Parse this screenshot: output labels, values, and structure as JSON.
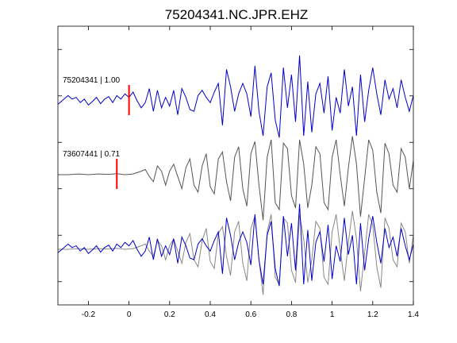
{
  "chart_data": {
    "type": "line",
    "title": "75204341.NC.JPR.EHZ",
    "xlabel": "",
    "ylabel": "",
    "xlim": [
      -0.35,
      1.4
    ],
    "xticks": [
      -0.2,
      0,
      0.2,
      0.4,
      0.6,
      0.8,
      1,
      1.2,
      1.4
    ],
    "xtick_labels": [
      "-0.2",
      "0",
      "0.2",
      "0.4",
      "0.6",
      "0.8",
      "1",
      "1.2",
      "1.4"
    ],
    "yticks_count": 6,
    "ytick_labels": [],
    "grid": false,
    "legend": "none",
    "colors": {
      "primary": "#0000cc",
      "reference": "#555555",
      "pick": "#ff0000",
      "axes": "#000000"
    },
    "traces": [
      {
        "label": "75204341 | 1.00",
        "color": "#0000cc",
        "pick_time": 0.0,
        "x": [
          -0.35,
          -0.32,
          -0.3,
          -0.28,
          -0.26,
          -0.24,
          -0.22,
          -0.2,
          -0.18,
          -0.16,
          -0.14,
          -0.12,
          -0.1,
          -0.08,
          -0.06,
          -0.04,
          -0.02,
          0,
          0.02,
          0.04,
          0.06,
          0.08,
          0.1,
          0.12,
          0.14,
          0.16,
          0.18,
          0.2,
          0.22,
          0.24,
          0.26,
          0.28,
          0.3,
          0.32,
          0.34,
          0.36,
          0.38,
          0.4,
          0.42,
          0.44,
          0.46,
          0.48,
          0.5,
          0.52,
          0.54,
          0.56,
          0.58,
          0.6,
          0.62,
          0.64,
          0.66,
          0.68,
          0.7,
          0.72,
          0.74,
          0.76,
          0.78,
          0.8,
          0.82,
          0.84,
          0.86,
          0.88,
          0.9,
          0.92,
          0.94,
          0.96,
          0.98,
          1,
          1.02,
          1.04,
          1.06,
          1.08,
          1.1,
          1.12,
          1.14,
          1.16,
          1.18,
          1.2,
          1.22,
          1.24,
          1.26,
          1.28,
          1.3,
          1.32,
          1.34,
          1.36,
          1.38,
          1.4
        ],
        "y": [
          -0.1,
          0.05,
          0.15,
          0.05,
          0.1,
          -0.05,
          0.05,
          -0.12,
          -0.02,
          0.1,
          -0.08,
          0.05,
          0.12,
          -0.05,
          0.15,
          0.05,
          0.2,
          0.1,
          0.25,
          0.0,
          -0.2,
          -0.05,
          0.35,
          -0.3,
          0.3,
          -0.2,
          0.1,
          -0.15,
          0.3,
          -0.4,
          0.35,
          0.1,
          -0.25,
          -0.3,
          0.15,
          0.3,
          0.1,
          -0.05,
          0.25,
          0.5,
          -0.7,
          0.9,
          0.4,
          -0.3,
          0.2,
          0.5,
          0.2,
          -0.45,
          1.0,
          -0.3,
          -1.0,
          0.4,
          0.8,
          -0.55,
          -1.05,
          0.95,
          -0.2,
          0.75,
          -0.6,
          1.3,
          -1.0,
          0.55,
          -0.9,
          0.2,
          0.5,
          -0.35,
          0.7,
          -0.85,
          0.1,
          -0.35,
          0.9,
          -0.15,
          0.4,
          -1.0,
          0.75,
          -0.6,
          0.3,
          0.95,
          0.2,
          -0.4,
          0.6,
          0.05,
          0.35,
          -0.2,
          0.6,
          0.1,
          -0.3,
          0.15
        ]
      },
      {
        "label": "73607441 | 0.71",
        "color": "#555555",
        "pick_time": -0.06,
        "x": [
          -0.35,
          -0.3,
          -0.25,
          -0.2,
          -0.15,
          -0.1,
          -0.06,
          -0.02,
          0.02,
          0.06,
          0.08,
          0.1,
          0.12,
          0.14,
          0.16,
          0.18,
          0.2,
          0.22,
          0.24,
          0.26,
          0.28,
          0.3,
          0.32,
          0.34,
          0.36,
          0.38,
          0.4,
          0.42,
          0.44,
          0.46,
          0.48,
          0.5,
          0.52,
          0.54,
          0.56,
          0.58,
          0.6,
          0.62,
          0.64,
          0.66,
          0.68,
          0.7,
          0.72,
          0.74,
          0.76,
          0.78,
          0.8,
          0.82,
          0.84,
          0.86,
          0.88,
          0.9,
          0.92,
          0.94,
          0.96,
          0.98,
          1,
          1.02,
          1.04,
          1.06,
          1.08,
          1.1,
          1.12,
          1.14,
          1.16,
          1.18,
          1.2,
          1.22,
          1.24,
          1.26,
          1.28,
          1.3,
          1.32,
          1.34,
          1.36,
          1.38,
          1.4
        ],
        "y": [
          0,
          0,
          0.02,
          0,
          0.02,
          0.01,
          0.03,
          0.0,
          0.02,
          0.1,
          0.15,
          -0.05,
          -0.2,
          0.25,
          0.1,
          -0.3,
          0.1,
          0.3,
          -0.05,
          -0.4,
          0.2,
          0.45,
          -0.3,
          -0.5,
          0.25,
          0.6,
          -0.35,
          -0.55,
          0.45,
          0.65,
          -0.2,
          -0.75,
          0.5,
          0.8,
          -0.4,
          -0.9,
          0.6,
          0.95,
          -0.3,
          -1.3,
          0.5,
          1.0,
          -0.8,
          -1.0,
          0.9,
          0.75,
          -0.6,
          -0.95,
          1.0,
          0.3,
          -0.95,
          -0.3,
          0.8,
          0.6,
          -0.8,
          -1.0,
          0.5,
          1.0,
          0.0,
          -0.9,
          0.2,
          1.1,
          0.3,
          -1.2,
          -0.1,
          1.0,
          0.7,
          -0.5,
          -1.1,
          0.9,
          0.6,
          -0.3,
          -0.5,
          0.75,
          0.5,
          -0.4,
          0.4
        ]
      }
    ]
  }
}
